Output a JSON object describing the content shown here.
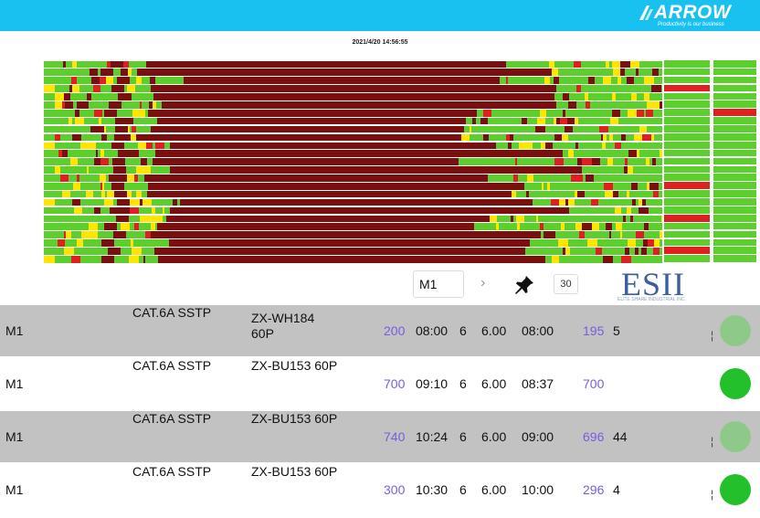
{
  "header": {
    "logo_text": "ARROW",
    "tagline": "Productivity is our business",
    "bg_color": "#19c1f0"
  },
  "timestamp": "2021/4/20 14:56:55",
  "gantt": {
    "colors": {
      "run": "#5ccf2f",
      "stop": "#7a0f0f",
      "idle": "#ffe600",
      "alarm": "#e02020"
    },
    "row_count": 25
  },
  "toolbar": {
    "machine_select": "M1",
    "count": "30",
    "brand": "ESII",
    "brand_sub": "ELITE SHARE INDUSTRIAL INC."
  },
  "rows": [
    {
      "machine": "M1",
      "cable": "CAT.6A SSTP",
      "part": "ZX-WH184\n60P",
      "qty": "200",
      "start": "08:00",
      "n": "6",
      "rate": "6.00",
      "end": "08:00",
      "done": "195",
      "extra": "5",
      "status_color": "#8fc98a"
    },
    {
      "machine": "M1",
      "cable": "CAT.6A SSTP",
      "part": "ZX-BU153 60P",
      "qty": "700",
      "start": "09:10",
      "n": "6",
      "rate": "6.00",
      "end": "08:37",
      "done": "700",
      "extra": "",
      "status_color": "#22c02a"
    },
    {
      "machine": "M1",
      "cable": "CAT.6A SSTP",
      "part": "ZX-BU153 60P",
      "qty": "740",
      "start": "10:24",
      "n": "6",
      "rate": "6.00",
      "end": "09:00",
      "done": "696",
      "extra": "44",
      "status_color": "#8fc98a"
    },
    {
      "machine": "M1",
      "cable": "CAT.6A SSTP",
      "part": "ZX-BU153 60P",
      "qty": "300",
      "start": "10:30",
      "n": "6",
      "rate": "6.00",
      "end": "10:00",
      "done": "296",
      "extra": "4",
      "status_color": "#22c02a"
    }
  ]
}
